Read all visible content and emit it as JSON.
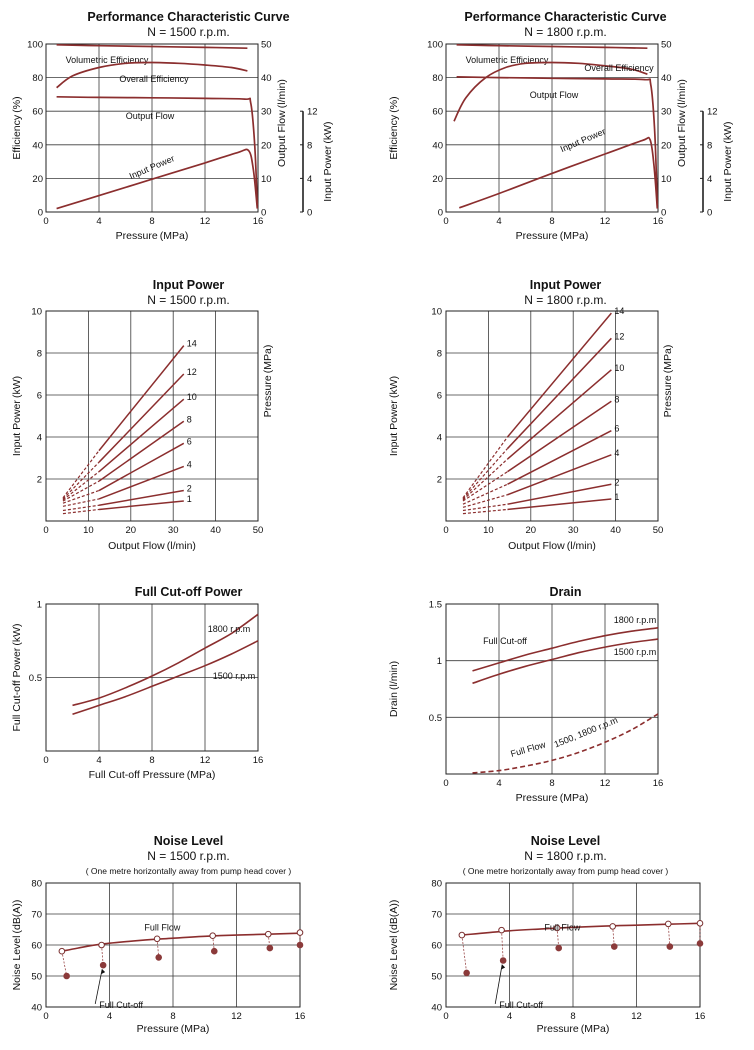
{
  "colors": {
    "curve": "#8b2e2e",
    "grid": "#3a3a3a",
    "marker_fill": "#8b3a3a"
  },
  "chart_data": [
    {
      "id": "perf1500",
      "type": "line",
      "title": "Performance Characteristic Curve",
      "subtitle": "N = 1500 r.p.m.",
      "xlabel": "Pressure (MPa)",
      "xlim": [
        0,
        16
      ],
      "xticks": [
        0,
        4,
        8,
        12,
        16
      ],
      "y_axes": [
        {
          "label": "Efficiency (%)",
          "lim": [
            0,
            100
          ],
          "ticks": [
            20,
            40,
            60,
            80,
            100
          ]
        },
        {
          "label": "Output Flow (l/min)",
          "lim": [
            0,
            50
          ],
          "ticks": [
            0,
            10,
            20,
            30,
            40,
            50
          ]
        },
        {
          "label": "Input Power (kW)",
          "lim": [
            0,
            12
          ],
          "ticks": [
            0,
            4,
            8,
            12
          ]
        }
      ],
      "grid": true,
      "series": [
        {
          "name": "Volumetric Efficiency",
          "axis": 0,
          "x": [
            0.8,
            4,
            8,
            12,
            15.2
          ],
          "y": [
            99.5,
            99,
            98.5,
            98,
            97.5
          ]
        },
        {
          "name": "Overall Efficiency",
          "axis": 0,
          "x": [
            0.8,
            2,
            4,
            6,
            8,
            10,
            12,
            14,
            15.2
          ],
          "y": [
            74,
            81,
            86,
            88.5,
            89,
            88.5,
            87.5,
            86,
            84
          ]
        },
        {
          "name": "Output Flow",
          "axis": 1,
          "x": [
            0.8,
            4,
            8,
            12,
            15,
            15.45,
            15.75,
            15.95
          ],
          "y": [
            34.3,
            34.1,
            34,
            33.8,
            33.6,
            32.5,
            20,
            2
          ]
        },
        {
          "name": "Input Power",
          "axis": 2,
          "x": [
            0.8,
            4,
            8,
            12,
            14.5,
            15.3,
            15.65,
            15.95
          ],
          "y": [
            0.4,
            1.95,
            3.9,
            5.85,
            7.1,
            7.3,
            5,
            0.4
          ]
        }
      ]
    },
    {
      "id": "perf1800",
      "type": "line",
      "title": "Performance Characteristic Curve",
      "subtitle": "N = 1800 r.p.m.",
      "xlabel": "Pressure (MPa)",
      "xlim": [
        0,
        16
      ],
      "xticks": [
        0,
        4,
        8,
        12,
        16
      ],
      "y_axes": [
        {
          "label": "Efficiency (%)",
          "lim": [
            0,
            100
          ],
          "ticks": [
            20,
            40,
            60,
            80,
            100
          ]
        },
        {
          "label": "Output Flow (l/min)",
          "lim": [
            0,
            50
          ],
          "ticks": [
            0,
            10,
            20,
            30,
            40,
            50
          ]
        },
        {
          "label": "Input Power (kW)",
          "lim": [
            0,
            12
          ],
          "ticks": [
            0,
            4,
            8,
            12
          ]
        }
      ],
      "grid": true,
      "series": [
        {
          "name": "Volumetric Efficiency",
          "axis": 0,
          "x": [
            0.8,
            4,
            8,
            12,
            15.2
          ],
          "y": [
            99.5,
            99,
            98.5,
            98,
            97.5
          ]
        },
        {
          "name": "Overall Efficiency",
          "axis": 0,
          "x": [
            0.6,
            1.5,
            3,
            4.5,
            6,
            8,
            10,
            12,
            14,
            15.2
          ],
          "y": [
            54,
            68,
            80,
            86,
            88.5,
            89,
            88.5,
            87,
            85,
            82
          ]
        },
        {
          "name": "Output Flow",
          "axis": 1,
          "x": [
            0.8,
            4,
            8,
            12,
            15,
            15.45,
            15.75,
            15.95
          ],
          "y": [
            40.2,
            40,
            39.8,
            39.6,
            39.4,
            38,
            24,
            2
          ]
        },
        {
          "name": "Input Power",
          "axis": 2,
          "x": [
            1,
            4,
            8,
            12,
            14.8,
            15.4,
            15.7,
            15.95
          ],
          "y": [
            0.5,
            2.2,
            4.6,
            6.9,
            8.5,
            8.6,
            5.5,
            0.4
          ]
        }
      ]
    },
    {
      "id": "ip1500",
      "type": "line",
      "title": "Input Power",
      "subtitle": "N = 1500 r.p.m.",
      "xlabel": "Output Flow (l/min)",
      "ylabel": "Input Power (kW)",
      "right_label": "Pressure (MPa)",
      "xlim": [
        0,
        50
      ],
      "ylim": [
        0,
        10
      ],
      "xticks": [
        0,
        10,
        20,
        30,
        40,
        50
      ],
      "yticks": [
        2,
        4,
        6,
        8,
        10
      ],
      "grid": true,
      "x_start": 4,
      "x_solid": 12.5,
      "x_end": 32.5,
      "series": [
        {
          "name": "1",
          "y0": 0.35,
          "y1": 0.55,
          "y2": 0.95
        },
        {
          "name": "2",
          "y0": 0.5,
          "y1": 0.75,
          "y2": 1.45
        },
        {
          "name": "4",
          "y0": 0.7,
          "y1": 1.05,
          "y2": 2.6
        },
        {
          "name": "6",
          "y0": 0.85,
          "y1": 1.45,
          "y2": 3.7
        },
        {
          "name": "8",
          "y0": 0.95,
          "y1": 1.9,
          "y2": 4.75
        },
        {
          "name": "10",
          "y0": 1.0,
          "y1": 2.35,
          "y2": 5.8
        },
        {
          "name": "12",
          "y0": 1.05,
          "y1": 2.8,
          "y2": 7.0
        },
        {
          "name": "14",
          "y0": 1.1,
          "y1": 3.35,
          "y2": 8.35
        }
      ]
    },
    {
      "id": "ip1800",
      "type": "line",
      "title": "Input Power",
      "subtitle": "N = 1800 r.p.m.",
      "xlabel": "Output Flow (l/min)",
      "ylabel": "Input Power (kW)",
      "right_label": "Pressure (MPa)",
      "xlim": [
        0,
        50
      ],
      "ylim": [
        0,
        10
      ],
      "xticks": [
        0,
        10,
        20,
        30,
        40,
        50
      ],
      "yticks": [
        2,
        4,
        6,
        8,
        10
      ],
      "grid": true,
      "x_start": 4,
      "x_solid": 14.5,
      "x_end": 39,
      "series": [
        {
          "name": "1",
          "y0": 0.35,
          "y1": 0.55,
          "y2": 1.05
        },
        {
          "name": "2",
          "y0": 0.5,
          "y1": 0.8,
          "y2": 1.75
        },
        {
          "name": "4",
          "y0": 0.65,
          "y1": 1.25,
          "y2": 3.15
        },
        {
          "name": "6",
          "y0": 0.8,
          "y1": 1.75,
          "y2": 4.3
        },
        {
          "name": "8",
          "y0": 0.95,
          "y1": 2.35,
          "y2": 5.7
        },
        {
          "name": "10",
          "y0": 1.0,
          "y1": 2.95,
          "y2": 7.2
        },
        {
          "name": "12",
          "y0": 1.05,
          "y1": 3.45,
          "y2": 8.7
        },
        {
          "name": "14",
          "y0": 1.1,
          "y1": 4.0,
          "y2": 9.9
        }
      ]
    },
    {
      "id": "cutoff",
      "type": "line",
      "title": "Full Cut-off Power",
      "xlabel": "Full Cut-off Pressure (MPa)",
      "ylabel": "Full Cut-off Power (kW)",
      "xlim": [
        0,
        16
      ],
      "ylim": [
        0,
        1.0
      ],
      "xticks": [
        0,
        4,
        8,
        12,
        16
      ],
      "yticks": [
        0.5,
        1.0
      ],
      "grid": true,
      "series": [
        {
          "name": "1800 r.p.m",
          "x": [
            2,
            4,
            6,
            8,
            10,
            12,
            14,
            16
          ],
          "y": [
            0.31,
            0.36,
            0.43,
            0.51,
            0.6,
            0.7,
            0.8,
            0.93
          ]
        },
        {
          "name": "1500 r.p.m",
          "x": [
            2,
            4,
            6,
            8,
            10,
            12,
            14,
            16
          ],
          "y": [
            0.25,
            0.31,
            0.37,
            0.44,
            0.51,
            0.58,
            0.66,
            0.75
          ]
        }
      ]
    },
    {
      "id": "drain",
      "type": "line",
      "title": "Drain",
      "xlabel": "Pressure (MPa)",
      "ylabel": "Drain (l/min)",
      "xlim": [
        0,
        16
      ],
      "ylim": [
        0,
        1.5
      ],
      "xticks": [
        0,
        4,
        8,
        12,
        16
      ],
      "yticks": [
        0.5,
        1.0,
        1.5
      ],
      "grid": true,
      "series": [
        {
          "name": "1800 r.p.m",
          "label": "Full Cut-off",
          "x": [
            2,
            4,
            6,
            8,
            10,
            12,
            14,
            16
          ],
          "y": [
            0.91,
            0.98,
            1.05,
            1.11,
            1.17,
            1.22,
            1.26,
            1.29
          ]
        },
        {
          "name": "1500 r.p.m",
          "x": [
            2,
            4,
            6,
            8,
            10,
            12,
            14,
            16
          ],
          "y": [
            0.8,
            0.88,
            0.95,
            1.01,
            1.07,
            1.12,
            1.16,
            1.19
          ]
        },
        {
          "name": "1500, 1800 r.p.m",
          "label": "Full Flow",
          "dashed": true,
          "x": [
            2,
            4,
            6,
            8,
            10,
            12,
            14,
            16
          ],
          "y": [
            0.01,
            0.03,
            0.07,
            0.12,
            0.19,
            0.28,
            0.39,
            0.53
          ]
        }
      ]
    },
    {
      "id": "noise1500",
      "type": "scatter",
      "title": "Noise Level",
      "subtitle": "N = 1500 r.p.m.",
      "note": "( One metre horizontally away from pump head cover )",
      "xlabel": "Pressure (MPa)",
      "ylabel": "Noise Level (dB(A))",
      "xlim": [
        0,
        16
      ],
      "ylim": [
        40,
        80
      ],
      "xticks": [
        0,
        4,
        8,
        12,
        16
      ],
      "yticks": [
        40,
        50,
        60,
        70,
        80
      ],
      "grid": true,
      "full_flow_curve": {
        "x": [
          1,
          2,
          3.5,
          6,
          8,
          10,
          12,
          14,
          16
        ],
        "y": [
          58,
          59,
          60.3,
          61.5,
          62.2,
          62.8,
          63.2,
          63.5,
          63.8
        ]
      },
      "full_flow_points": {
        "x": [
          1,
          3.5,
          7,
          10.5,
          14,
          16
        ],
        "y": [
          58,
          60,
          62,
          63,
          63.5,
          64
        ]
      },
      "cutoff_points": {
        "x": [
          1.3,
          3.6,
          7.1,
          10.6,
          14.1,
          16
        ],
        "y": [
          50,
          53.5,
          56,
          58,
          59,
          60
        ]
      },
      "label_full_flow": "Full Flow",
      "label_cutoff": "Full Cut-off"
    },
    {
      "id": "noise1800",
      "type": "scatter",
      "title": "Noise Level",
      "subtitle": "N = 1800 r.p.m.",
      "note": "( One metre horizontally away from pump head cover )",
      "xlabel": "Pressure (MPa)",
      "ylabel": "Noise Level (dB(A))",
      "xlim": [
        0,
        16
      ],
      "ylim": [
        40,
        80
      ],
      "xticks": [
        0,
        4,
        8,
        12,
        16
      ],
      "yticks": [
        40,
        50,
        60,
        70,
        80
      ],
      "grid": true,
      "full_flow_curve": {
        "x": [
          1,
          3.5,
          6,
          8,
          10,
          12,
          14,
          16
        ],
        "y": [
          63.2,
          64.4,
          65.2,
          65.7,
          66.1,
          66.4,
          66.7,
          67
        ]
      },
      "full_flow_points": {
        "x": [
          1,
          3.5,
          7,
          10.5,
          14,
          16
        ],
        "y": [
          63.2,
          64.8,
          65.5,
          66,
          66.8,
          67
        ]
      },
      "cutoff_points": {
        "x": [
          1.3,
          3.6,
          7.1,
          10.6,
          14.1,
          16
        ],
        "y": [
          51,
          55,
          59,
          59.5,
          59.5,
          60.5
        ]
      },
      "label_full_flow": "Full Flow",
      "label_cutoff": "Full Cut-off"
    }
  ]
}
